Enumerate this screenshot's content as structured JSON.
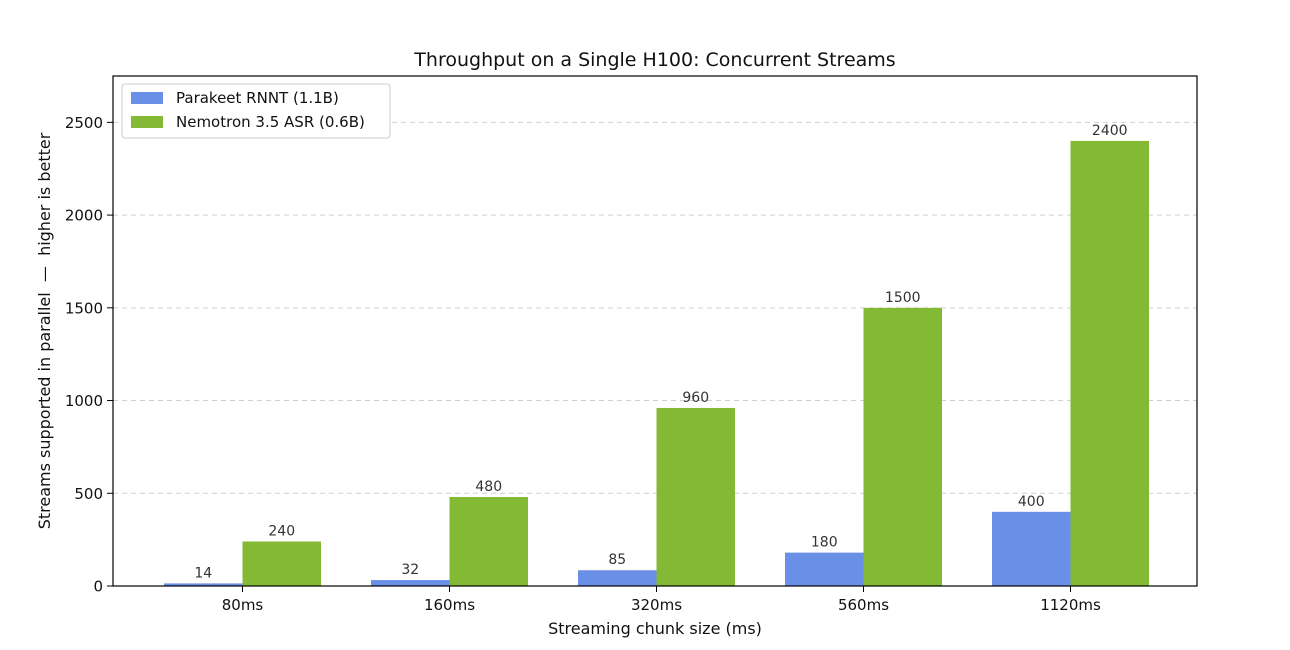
{
  "chart_data": {
    "type": "bar",
    "title": "Throughput on a Single H100: Concurrent Streams",
    "xlabel": "Streaming chunk size (ms)",
    "ylabel": "Streams supported in parallel  —  higher is better",
    "categories": [
      "80ms",
      "160ms",
      "320ms",
      "560ms",
      "1120ms"
    ],
    "series": [
      {
        "name": "Parakeet RNNT (1.1B)",
        "values": [
          14,
          32,
          85,
          180,
          400
        ],
        "color": "#6a8fe6"
      },
      {
        "name": "Nemotron 3.5 ASR (0.6B)",
        "values": [
          240,
          480,
          960,
          1500,
          2400
        ],
        "color": "#84b936"
      }
    ],
    "ylim": [
      0,
      2750
    ],
    "yticks": [
      0,
      500,
      1000,
      1500,
      2000,
      2500
    ],
    "grid": "y-dashed",
    "legend_position": "top-left",
    "data_labels": true
  }
}
